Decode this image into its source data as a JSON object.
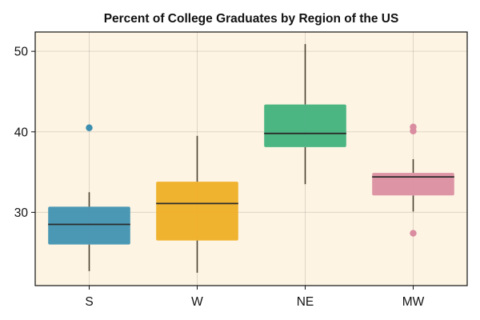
{
  "chart_data": {
    "type": "box",
    "title": "Percent of College Graduates by Region of the US",
    "xlabel": "",
    "ylabel": "",
    "categories": [
      "S",
      "W",
      "NE",
      "MW"
    ],
    "ylim": [
      20.9,
      52.4
    ],
    "yticks": [
      30,
      40,
      50
    ],
    "grid": true,
    "background": "#fdf4e3",
    "boxes": [
      {
        "category": "S",
        "whisker_low": 22.7,
        "q1": 26.0,
        "median": 28.5,
        "q3": 30.7,
        "whisker_high": 32.5,
        "outliers": [
          40.5
        ],
        "color": "#3c8fb0"
      },
      {
        "category": "W",
        "whisker_low": 22.5,
        "q1": 26.5,
        "median": 31.1,
        "q3": 33.8,
        "whisker_high": 39.5,
        "outliers": [],
        "color": "#efad1f"
      },
      {
        "category": "NE",
        "whisker_low": 33.5,
        "q1": 38.1,
        "median": 39.8,
        "q3": 43.4,
        "whisker_high": 50.9,
        "outliers": [],
        "color": "#3db07b"
      },
      {
        "category": "MW",
        "whisker_low": 30.1,
        "q1": 32.1,
        "median": 34.4,
        "q3": 34.9,
        "whisker_high": 36.6,
        "outliers": [
          40.6,
          40.1,
          27.4
        ],
        "color": "#da8ca0"
      }
    ]
  }
}
